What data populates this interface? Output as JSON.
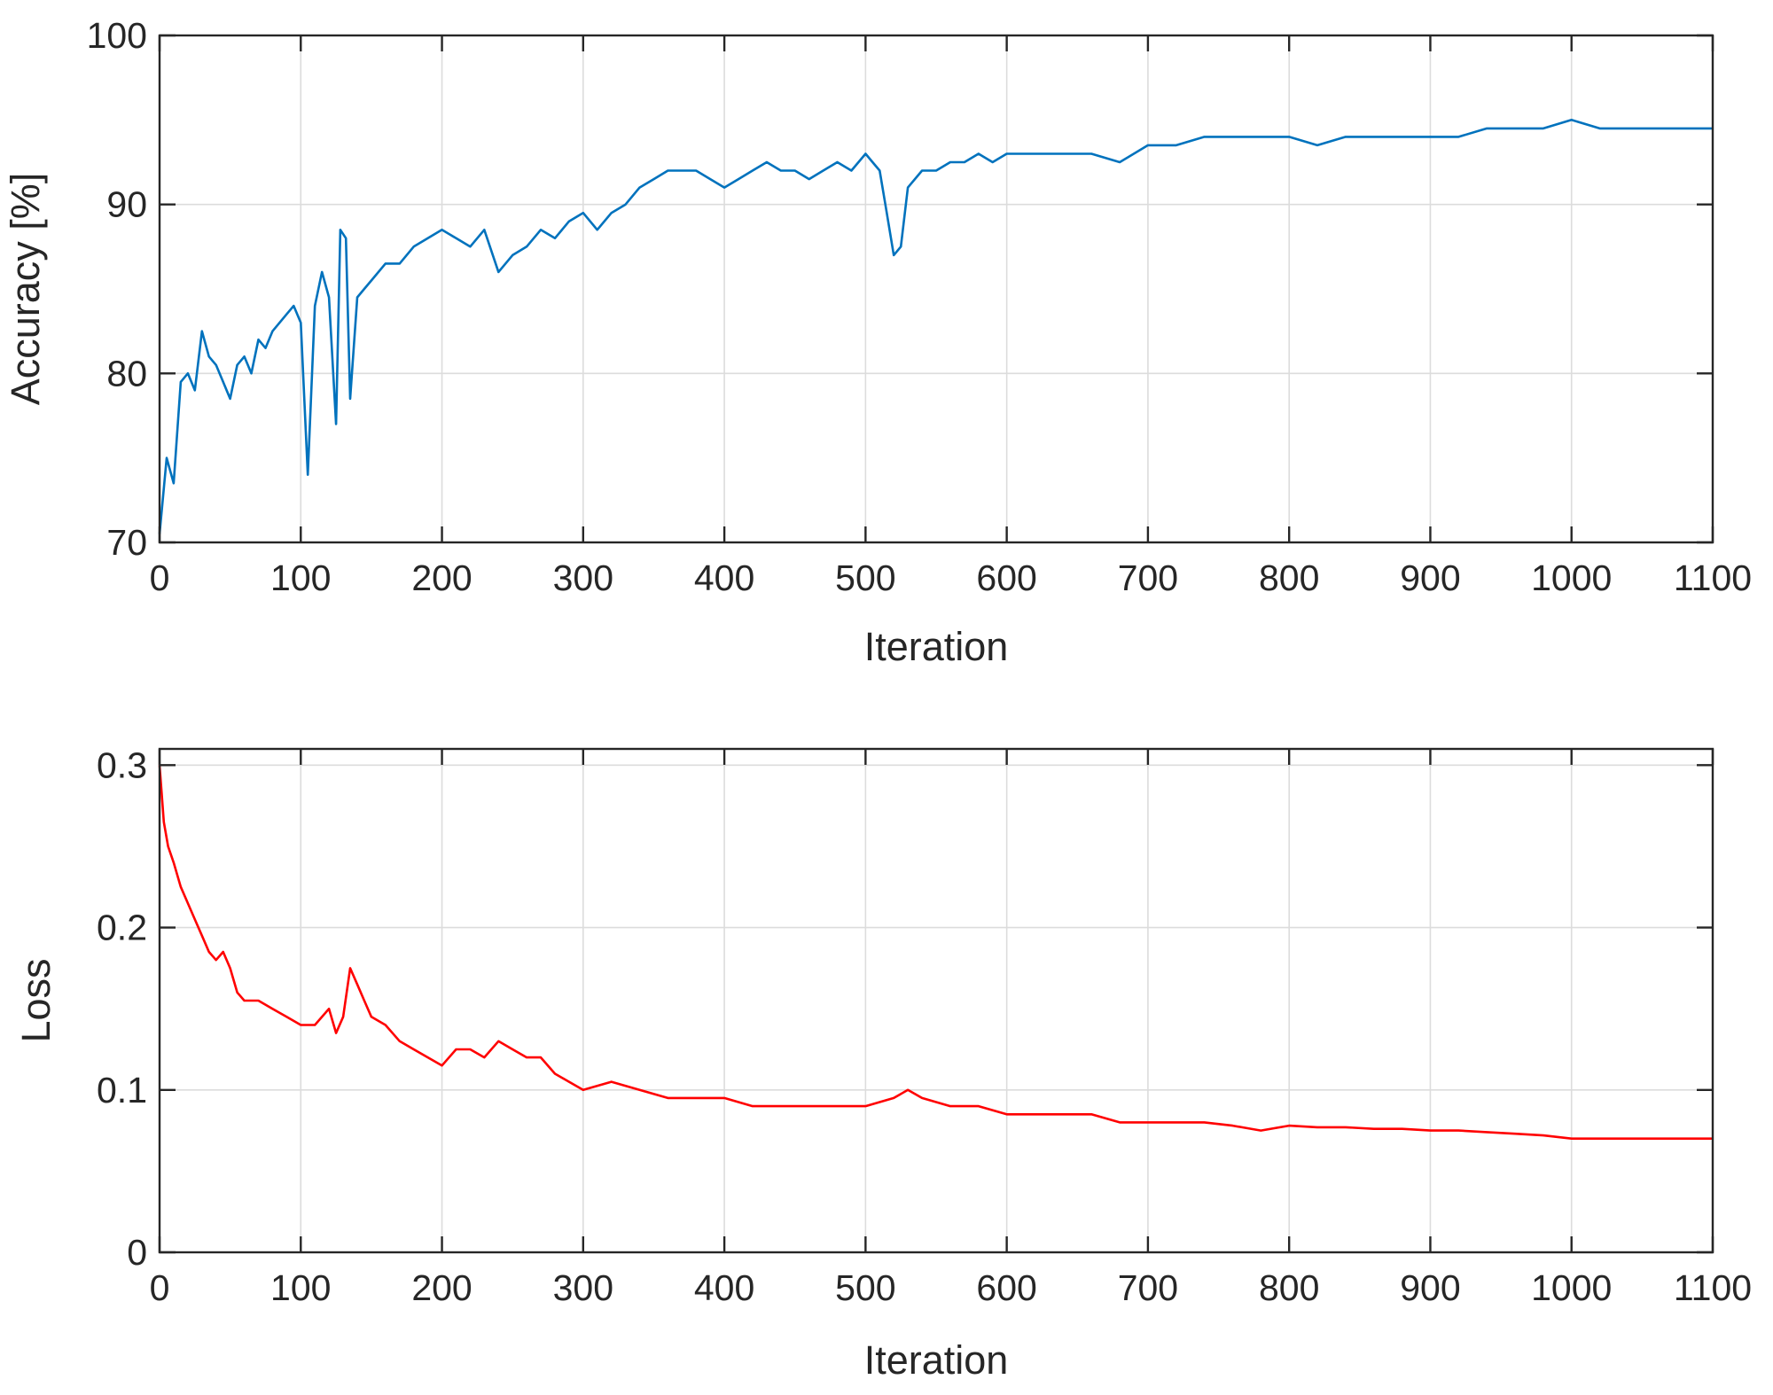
{
  "chart_data": [
    {
      "type": "line",
      "xlabel": "Iteration",
      "ylabel": "Accuracy [%]",
      "xlim": [
        0,
        1100
      ],
      "ylim": [
        70,
        100
      ],
      "xticks": [
        0,
        100,
        200,
        300,
        400,
        500,
        600,
        700,
        800,
        900,
        1000,
        1100
      ],
      "xtick_labels": [
        "0",
        "100",
        "200",
        "300",
        "400",
        "500",
        "600",
        "700",
        "800",
        "900",
        "1000",
        "1100"
      ],
      "yticks": [
        70,
        80,
        90,
        100
      ],
      "ytick_labels": [
        "70",
        "80",
        "90",
        "100"
      ],
      "grid": true,
      "color": "#0072BD",
      "series": [
        {
          "name": "Accuracy",
          "x": [
            0,
            5,
            10,
            15,
            20,
            25,
            30,
            35,
            40,
            45,
            50,
            55,
            60,
            65,
            70,
            75,
            80,
            85,
            90,
            95,
            100,
            105,
            110,
            115,
            120,
            125,
            128,
            132,
            135,
            140,
            145,
            150,
            160,
            170,
            180,
            190,
            200,
            210,
            220,
            230,
            240,
            250,
            260,
            270,
            280,
            290,
            300,
            310,
            320,
            330,
            340,
            350,
            360,
            370,
            380,
            390,
            400,
            410,
            420,
            430,
            440,
            450,
            460,
            470,
            480,
            490,
            500,
            505,
            510,
            515,
            520,
            525,
            530,
            540,
            550,
            560,
            570,
            580,
            590,
            600,
            620,
            640,
            660,
            680,
            700,
            720,
            740,
            760,
            780,
            800,
            820,
            840,
            860,
            880,
            900,
            920,
            940,
            960,
            980,
            1000,
            1020,
            1040,
            1060,
            1080,
            1100
          ],
          "values": [
            70.5,
            75.0,
            73.5,
            79.5,
            80.0,
            79.0,
            82.5,
            81.0,
            80.5,
            79.5,
            78.5,
            80.5,
            81.0,
            80.0,
            82.0,
            81.5,
            82.5,
            83.0,
            83.5,
            84.0,
            83.0,
            74.0,
            84.0,
            86.0,
            84.5,
            77.0,
            88.5,
            88.0,
            78.5,
            84.5,
            85.0,
            85.5,
            86.5,
            86.5,
            87.5,
            88.0,
            88.5,
            88.0,
            87.5,
            88.5,
            86.0,
            87.0,
            87.5,
            88.5,
            88.0,
            89.0,
            89.5,
            88.5,
            89.5,
            90.0,
            91.0,
            91.5,
            92.0,
            92.0,
            92.0,
            91.5,
            91.0,
            91.5,
            92.0,
            92.5,
            92.0,
            92.0,
            91.5,
            92.0,
            92.5,
            92.0,
            93.0,
            92.5,
            92.0,
            89.5,
            87.0,
            87.5,
            91.0,
            92.0,
            92.0,
            92.5,
            92.5,
            93.0,
            92.5,
            93.0,
            93.0,
            93.0,
            93.0,
            92.5,
            93.5,
            93.5,
            94.0,
            94.0,
            94.0,
            94.0,
            93.5,
            94.0,
            94.0,
            94.0,
            94.0,
            94.0,
            94.5,
            94.5,
            94.5,
            95.0,
            94.5,
            94.5,
            94.5,
            94.5,
            94.5
          ]
        }
      ]
    },
    {
      "type": "line",
      "xlabel": "Iteration",
      "ylabel": "Loss",
      "xlim": [
        0,
        1100
      ],
      "ylim": [
        0,
        0.31
      ],
      "xticks": [
        0,
        100,
        200,
        300,
        400,
        500,
        600,
        700,
        800,
        900,
        1000,
        1100
      ],
      "xtick_labels": [
        "0",
        "100",
        "200",
        "300",
        "400",
        "500",
        "600",
        "700",
        "800",
        "900",
        "1000",
        "1100"
      ],
      "yticks": [
        0,
        0.1,
        0.2,
        0.3
      ],
      "ytick_labels": [
        "0",
        "0.1",
        "0.2",
        "0.3"
      ],
      "grid": true,
      "color": "#FF0000",
      "series": [
        {
          "name": "Loss",
          "x": [
            0,
            3,
            6,
            10,
            15,
            20,
            25,
            30,
            35,
            40,
            45,
            50,
            55,
            60,
            70,
            80,
            90,
            100,
            110,
            120,
            125,
            130,
            135,
            140,
            145,
            150,
            160,
            170,
            180,
            190,
            200,
            210,
            220,
            230,
            240,
            250,
            260,
            270,
            280,
            290,
            300,
            320,
            340,
            360,
            380,
            400,
            420,
            440,
            460,
            480,
            500,
            520,
            530,
            540,
            560,
            580,
            600,
            620,
            640,
            660,
            680,
            700,
            720,
            740,
            760,
            780,
            800,
            820,
            840,
            860,
            880,
            900,
            920,
            940,
            960,
            980,
            1000,
            1020,
            1040,
            1060,
            1080,
            1100
          ],
          "values": [
            0.3,
            0.265,
            0.25,
            0.24,
            0.225,
            0.215,
            0.205,
            0.195,
            0.185,
            0.18,
            0.185,
            0.175,
            0.16,
            0.155,
            0.155,
            0.15,
            0.145,
            0.14,
            0.14,
            0.15,
            0.135,
            0.145,
            0.175,
            0.165,
            0.155,
            0.145,
            0.14,
            0.13,
            0.125,
            0.12,
            0.115,
            0.125,
            0.125,
            0.12,
            0.13,
            0.125,
            0.12,
            0.12,
            0.11,
            0.105,
            0.1,
            0.105,
            0.1,
            0.095,
            0.095,
            0.095,
            0.09,
            0.09,
            0.09,
            0.09,
            0.09,
            0.095,
            0.1,
            0.095,
            0.09,
            0.09,
            0.085,
            0.085,
            0.085,
            0.085,
            0.08,
            0.08,
            0.08,
            0.08,
            0.078,
            0.075,
            0.078,
            0.077,
            0.077,
            0.076,
            0.076,
            0.075,
            0.075,
            0.074,
            0.073,
            0.072,
            0.07,
            0.07,
            0.07,
            0.07,
            0.07,
            0.07
          ]
        }
      ]
    }
  ]
}
